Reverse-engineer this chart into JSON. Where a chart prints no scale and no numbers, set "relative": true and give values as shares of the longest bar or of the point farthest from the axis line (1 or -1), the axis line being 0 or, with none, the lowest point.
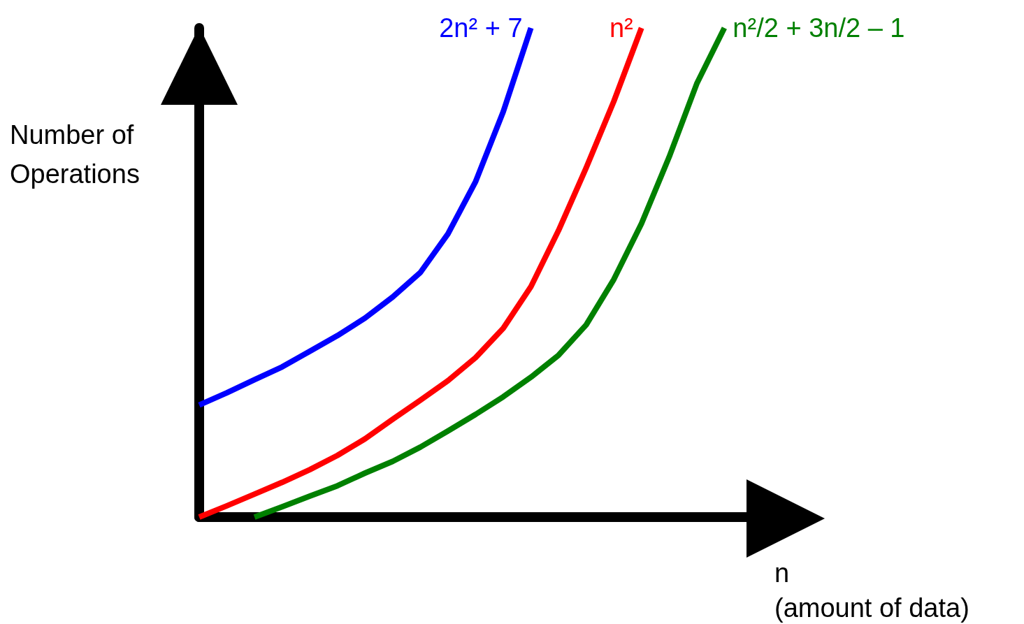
{
  "chart_data": {
    "type": "line",
    "relative": true,
    "xlabel": "n\n(amount of data)",
    "ylabel": "Number of Operations",
    "categories": [
      null,
      null,
      null,
      null,
      null,
      null,
      null,
      null,
      null,
      null,
      null,
      null,
      null,
      null,
      null,
      null,
      null,
      null,
      null,
      null,
      null,
      null,
      null
    ],
    "series": [
      {
        "name": "2n² + 7",
        "color": "#0000ff",
        "values": [
          0.229,
          0.254,
          0.281,
          0.307,
          0.339,
          0.371,
          0.407,
          0.45,
          0.5,
          0.579,
          0.686,
          0.829,
          1,
          null,
          null,
          null,
          null,
          null,
          null,
          null,
          null,
          null,
          null
        ]
      },
      {
        "name": "n²",
        "color": "#ff0000",
        "values": [
          0,
          0.023,
          0.047,
          0.071,
          0.097,
          0.126,
          0.16,
          0.2,
          0.239,
          0.279,
          0.326,
          0.386,
          0.471,
          0.586,
          0.714,
          0.85,
          1,
          null,
          null,
          null,
          null,
          null,
          null
        ]
      },
      {
        "name": "n²/2 + 3n/2 – 1",
        "color": "#008000",
        "values": [
          null,
          null,
          0,
          0.021,
          0.043,
          0.064,
          0.09,
          0.114,
          0.143,
          0.176,
          0.21,
          0.246,
          0.286,
          0.331,
          0.393,
          0.486,
          0.6,
          0.736,
          0.886,
          1,
          null,
          null,
          null
        ]
      }
    ],
    "grid": false,
    "marker": "none",
    "line_style": "solid"
  }
}
